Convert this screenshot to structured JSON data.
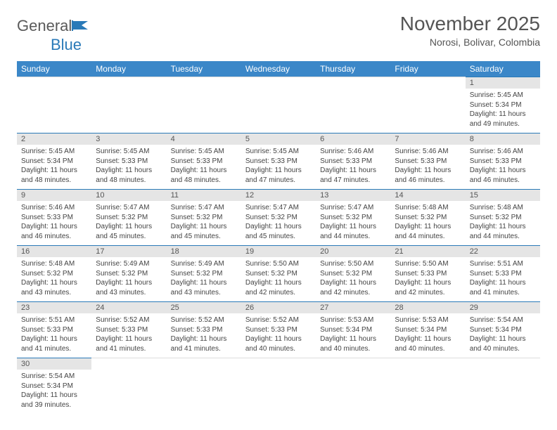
{
  "logo": {
    "word1": "General",
    "word2": "Blue"
  },
  "header": {
    "title": "November 2025",
    "location": "Norosi, Bolivar, Colombia"
  },
  "colors": {
    "header_bg": "#3b87c8",
    "header_text": "#ffffff",
    "daynum_bg": "#e5e5e5",
    "row_border": "#2a7ab8",
    "logo_gray": "#5a5a5a",
    "logo_blue": "#2a7ab8"
  },
  "weekdays": [
    "Sunday",
    "Monday",
    "Tuesday",
    "Wednesday",
    "Thursday",
    "Friday",
    "Saturday"
  ],
  "weeks": [
    [
      null,
      null,
      null,
      null,
      null,
      null,
      {
        "n": "1",
        "sr": "5:45 AM",
        "ss": "5:34 PM",
        "dl": "11 hours and 49 minutes."
      }
    ],
    [
      {
        "n": "2",
        "sr": "5:45 AM",
        "ss": "5:34 PM",
        "dl": "11 hours and 48 minutes."
      },
      {
        "n": "3",
        "sr": "5:45 AM",
        "ss": "5:33 PM",
        "dl": "11 hours and 48 minutes."
      },
      {
        "n": "4",
        "sr": "5:45 AM",
        "ss": "5:33 PM",
        "dl": "11 hours and 48 minutes."
      },
      {
        "n": "5",
        "sr": "5:45 AM",
        "ss": "5:33 PM",
        "dl": "11 hours and 47 minutes."
      },
      {
        "n": "6",
        "sr": "5:46 AM",
        "ss": "5:33 PM",
        "dl": "11 hours and 47 minutes."
      },
      {
        "n": "7",
        "sr": "5:46 AM",
        "ss": "5:33 PM",
        "dl": "11 hours and 46 minutes."
      },
      {
        "n": "8",
        "sr": "5:46 AM",
        "ss": "5:33 PM",
        "dl": "11 hours and 46 minutes."
      }
    ],
    [
      {
        "n": "9",
        "sr": "5:46 AM",
        "ss": "5:33 PM",
        "dl": "11 hours and 46 minutes."
      },
      {
        "n": "10",
        "sr": "5:47 AM",
        "ss": "5:32 PM",
        "dl": "11 hours and 45 minutes."
      },
      {
        "n": "11",
        "sr": "5:47 AM",
        "ss": "5:32 PM",
        "dl": "11 hours and 45 minutes."
      },
      {
        "n": "12",
        "sr": "5:47 AM",
        "ss": "5:32 PM",
        "dl": "11 hours and 45 minutes."
      },
      {
        "n": "13",
        "sr": "5:47 AM",
        "ss": "5:32 PM",
        "dl": "11 hours and 44 minutes."
      },
      {
        "n": "14",
        "sr": "5:48 AM",
        "ss": "5:32 PM",
        "dl": "11 hours and 44 minutes."
      },
      {
        "n": "15",
        "sr": "5:48 AM",
        "ss": "5:32 PM",
        "dl": "11 hours and 44 minutes."
      }
    ],
    [
      {
        "n": "16",
        "sr": "5:48 AM",
        "ss": "5:32 PM",
        "dl": "11 hours and 43 minutes."
      },
      {
        "n": "17",
        "sr": "5:49 AM",
        "ss": "5:32 PM",
        "dl": "11 hours and 43 minutes."
      },
      {
        "n": "18",
        "sr": "5:49 AM",
        "ss": "5:32 PM",
        "dl": "11 hours and 43 minutes."
      },
      {
        "n": "19",
        "sr": "5:50 AM",
        "ss": "5:32 PM",
        "dl": "11 hours and 42 minutes."
      },
      {
        "n": "20",
        "sr": "5:50 AM",
        "ss": "5:32 PM",
        "dl": "11 hours and 42 minutes."
      },
      {
        "n": "21",
        "sr": "5:50 AM",
        "ss": "5:33 PM",
        "dl": "11 hours and 42 minutes."
      },
      {
        "n": "22",
        "sr": "5:51 AM",
        "ss": "5:33 PM",
        "dl": "11 hours and 41 minutes."
      }
    ],
    [
      {
        "n": "23",
        "sr": "5:51 AM",
        "ss": "5:33 PM",
        "dl": "11 hours and 41 minutes."
      },
      {
        "n": "24",
        "sr": "5:52 AM",
        "ss": "5:33 PM",
        "dl": "11 hours and 41 minutes."
      },
      {
        "n": "25",
        "sr": "5:52 AM",
        "ss": "5:33 PM",
        "dl": "11 hours and 41 minutes."
      },
      {
        "n": "26",
        "sr": "5:52 AM",
        "ss": "5:33 PM",
        "dl": "11 hours and 40 minutes."
      },
      {
        "n": "27",
        "sr": "5:53 AM",
        "ss": "5:34 PM",
        "dl": "11 hours and 40 minutes."
      },
      {
        "n": "28",
        "sr": "5:53 AM",
        "ss": "5:34 PM",
        "dl": "11 hours and 40 minutes."
      },
      {
        "n": "29",
        "sr": "5:54 AM",
        "ss": "5:34 PM",
        "dl": "11 hours and 40 minutes."
      }
    ],
    [
      {
        "n": "30",
        "sr": "5:54 AM",
        "ss": "5:34 PM",
        "dl": "11 hours and 39 minutes."
      },
      null,
      null,
      null,
      null,
      null,
      null
    ]
  ],
  "labels": {
    "sunrise": "Sunrise:",
    "sunset": "Sunset:",
    "daylight": "Daylight:"
  }
}
